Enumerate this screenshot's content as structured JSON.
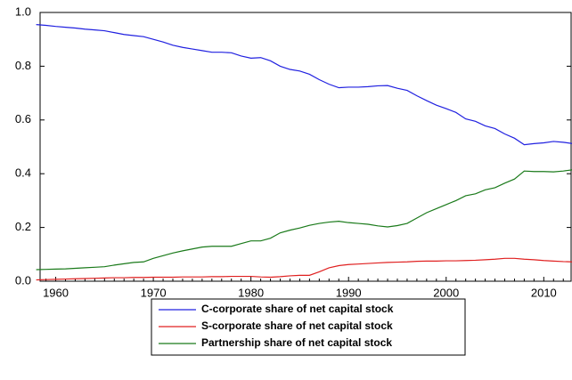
{
  "chart_data": {
    "type": "line",
    "x": [
      1958,
      1959,
      1960,
      1961,
      1962,
      1963,
      1964,
      1965,
      1966,
      1967,
      1968,
      1969,
      1970,
      1971,
      1972,
      1973,
      1974,
      1975,
      1976,
      1977,
      1978,
      1979,
      1980,
      1981,
      1982,
      1983,
      1984,
      1985,
      1986,
      1987,
      1988,
      1989,
      1990,
      1991,
      1992,
      1993,
      1994,
      1995,
      1996,
      1997,
      1998,
      1999,
      2000,
      2001,
      2002,
      2003,
      2004,
      2005,
      2006,
      2007,
      2008,
      2009,
      2010,
      2011,
      2012,
      2013
    ],
    "series": [
      {
        "name": "C-corporate share of net capital stock",
        "color": "#2020e0",
        "values": [
          0.955,
          0.952,
          0.948,
          0.945,
          0.942,
          0.938,
          0.935,
          0.932,
          0.925,
          0.918,
          0.914,
          0.91,
          0.9,
          0.89,
          0.878,
          0.87,
          0.864,
          0.858,
          0.852,
          0.852,
          0.85,
          0.838,
          0.83,
          0.832,
          0.82,
          0.8,
          0.788,
          0.782,
          0.77,
          0.75,
          0.733,
          0.72,
          0.722,
          0.722,
          0.724,
          0.727,
          0.728,
          0.718,
          0.71,
          0.69,
          0.672,
          0.655,
          0.642,
          0.628,
          0.604,
          0.595,
          0.578,
          0.568,
          0.548,
          0.532,
          0.508,
          0.512,
          0.515,
          0.52,
          0.517,
          0.512
        ]
      },
      {
        "name": "S-corporate share of net capital stock",
        "color": "#e02020",
        "values": [
          0.005,
          0.006,
          0.007,
          0.008,
          0.009,
          0.01,
          0.011,
          0.012,
          0.013,
          0.013,
          0.014,
          0.014,
          0.015,
          0.015,
          0.015,
          0.016,
          0.016,
          0.016,
          0.017,
          0.017,
          0.018,
          0.018,
          0.018,
          0.016,
          0.015,
          0.017,
          0.02,
          0.022,
          0.022,
          0.035,
          0.05,
          0.058,
          0.062,
          0.064,
          0.066,
          0.068,
          0.07,
          0.071,
          0.072,
          0.074,
          0.075,
          0.075,
          0.076,
          0.076,
          0.077,
          0.078,
          0.08,
          0.082,
          0.085,
          0.085,
          0.082,
          0.08,
          0.077,
          0.075,
          0.073,
          0.072
        ]
      },
      {
        "name": "Partnership share of net capital stock",
        "color": "#1a7a1a",
        "values": [
          0.043,
          0.044,
          0.045,
          0.046,
          0.048,
          0.05,
          0.052,
          0.054,
          0.06,
          0.065,
          0.07,
          0.072,
          0.085,
          0.095,
          0.105,
          0.113,
          0.12,
          0.127,
          0.13,
          0.13,
          0.13,
          0.14,
          0.15,
          0.15,
          0.16,
          0.18,
          0.19,
          0.198,
          0.208,
          0.215,
          0.22,
          0.223,
          0.218,
          0.215,
          0.212,
          0.206,
          0.202,
          0.207,
          0.215,
          0.235,
          0.255,
          0.27,
          0.285,
          0.3,
          0.318,
          0.325,
          0.34,
          0.348,
          0.365,
          0.38,
          0.41,
          0.408,
          0.408,
          0.407,
          0.41,
          0.415
        ]
      }
    ],
    "xlim": [
      1958.4,
      2012.8
    ],
    "xticks": [
      1960,
      1970,
      1980,
      1990,
      2000,
      2010
    ],
    "ylim": [
      0,
      1
    ],
    "yticks": [
      {
        "value": 0,
        "label": "0.0"
      },
      {
        "value": 0.2,
        "label": "0.2"
      },
      {
        "value": 0.4,
        "label": "0.4"
      },
      {
        "value": 0.6,
        "label": "0.6"
      },
      {
        "value": 0.8,
        "label": "0.8"
      },
      {
        "value": 1,
        "label": "1.0"
      }
    ],
    "grid": false,
    "legend": "bottom"
  }
}
